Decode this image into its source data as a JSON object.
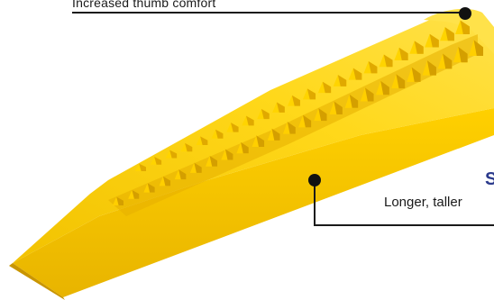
{
  "callouts": {
    "top": {
      "text": "Increased thumb comfort"
    },
    "right": {
      "heading": "S",
      "text": "Longer, taller"
    }
  },
  "colors": {
    "wedge_body": "#f5c400",
    "wedge_top": "#ffdd22",
    "wedge_shadow": "#d9a800",
    "wedge_dark": "#b88900",
    "leader_line": "#1a1a1a",
    "heading_accent": "#2b3a8c"
  },
  "object": {
    "name": "yellow tile leveling wedge",
    "icon": "wedge-icon"
  }
}
